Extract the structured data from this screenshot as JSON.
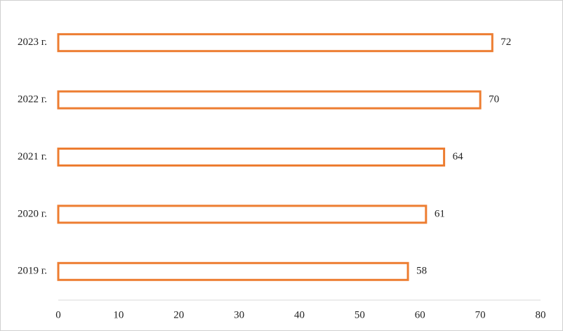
{
  "chart_data": {
    "type": "bar",
    "orientation": "horizontal",
    "categories": [
      "2019 г.",
      "2020 г.",
      "2021 г.",
      "2022 г.",
      "2023 г."
    ],
    "values": [
      58,
      61,
      64,
      70,
      72
    ],
    "color": "#ed7d31",
    "xlim": [
      0,
      80
    ],
    "xticks": [
      0,
      10,
      20,
      30,
      40,
      50,
      60,
      70,
      80
    ],
    "grid": false,
    "data_labels": true
  }
}
